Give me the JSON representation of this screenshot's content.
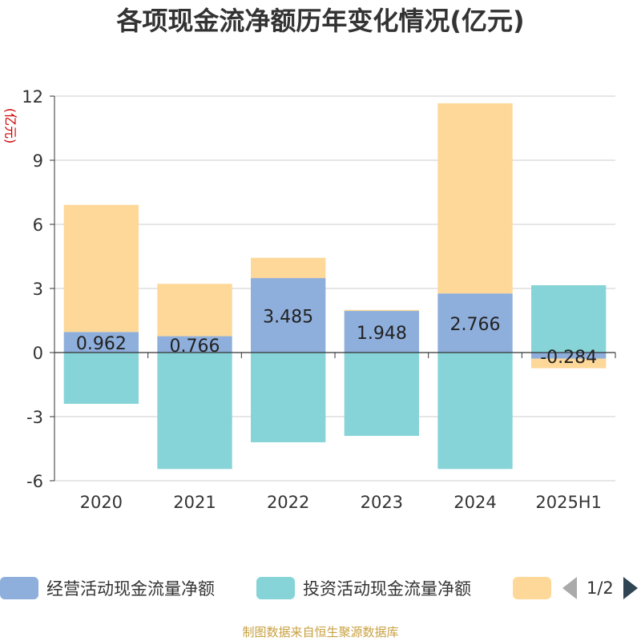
{
  "title": "各项现金流净额历年变化情况(亿元)",
  "unit_label": "(亿元)",
  "source": "制图数据来自恒生聚源数据库",
  "legend_pager": "1/2",
  "colors": {
    "operating": "#8eaedb",
    "investing": "#86d4d8",
    "financing": "#fdd898",
    "axis": "#333333",
    "grid": "#cccccc"
  },
  "chart_data": {
    "type": "bar",
    "stacked": true,
    "title": "各项现金流净额历年变化情况(亿元)",
    "ylabel": "(亿元)",
    "ylim": [
      -6,
      12
    ],
    "yticks": [
      12,
      9,
      6,
      3,
      0,
      -3,
      -6
    ],
    "grid": true,
    "legend_position": "bottom",
    "categories": [
      "2020",
      "2021",
      "2022",
      "2023",
      "2024",
      "2025H1"
    ],
    "series": [
      {
        "name": "经营活动现金流量净额",
        "values": [
          0.962,
          0.766,
          3.485,
          1.948,
          2.766,
          -0.284
        ],
        "labels": [
          "0.962",
          "0.766",
          "3.485",
          "1.948",
          "2.766",
          "-0.284"
        ]
      },
      {
        "name": "投资活动现金流量净额",
        "values": [
          -2.4,
          -5.45,
          -4.2,
          -3.9,
          -5.45,
          3.15
        ]
      },
      {
        "name": "",
        "values": [
          5.95,
          2.45,
          0.95,
          0.05,
          8.9,
          -0.45
        ]
      }
    ]
  }
}
